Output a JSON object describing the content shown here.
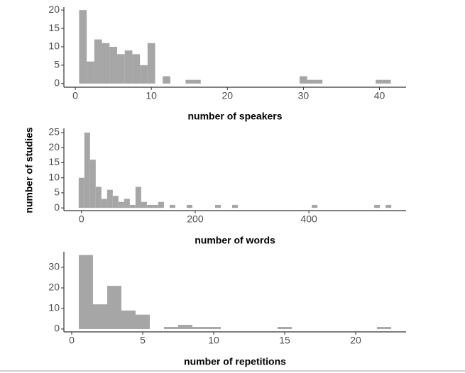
{
  "ylabel": "number of studies",
  "chart_data": [
    {
      "type": "histogram",
      "xlabel": "number of speakers",
      "color": "#a6a6a6",
      "bins": [
        0.5,
        1.5,
        2.5,
        3.5,
        4.5,
        5.5,
        6.5,
        7.5,
        8.5,
        9.5,
        10.5,
        11.5,
        12.5,
        13.5,
        14.5,
        15.5,
        16.5,
        17.5,
        18.5,
        19.5,
        20.5,
        21.5,
        22.5,
        23.5,
        24.5,
        25.5,
        26.5,
        27.5,
        28.5,
        29.5,
        30.5,
        31.5,
        32.5,
        33.5,
        34.5,
        35.5,
        36.5,
        37.5,
        38.5,
        39.5,
        40.5,
        41.5
      ],
      "counts": [
        20,
        6,
        12,
        11,
        10,
        8,
        9,
        8,
        5,
        11,
        0,
        2,
        0,
        0,
        1,
        1,
        0,
        0,
        0,
        0,
        0,
        0,
        0,
        0,
        0,
        0,
        0,
        0,
        0,
        2,
        1,
        1,
        0,
        0,
        0,
        0,
        0,
        0,
        0,
        1,
        1
      ],
      "xlim": [
        -1.5,
        43.5
      ],
      "xticks": [
        0,
        10,
        20,
        30,
        40
      ],
      "ylim": [
        -1,
        20.8
      ],
      "yticks": [
        0,
        5,
        10,
        15,
        20
      ]
    },
    {
      "type": "histogram",
      "xlabel": "number of words",
      "color": "#a6a6a6",
      "bins": [
        -5,
        5,
        15,
        25,
        35,
        45,
        55,
        65,
        75,
        85,
        95,
        105,
        115,
        125,
        135,
        145,
        155,
        165,
        175,
        185,
        195,
        205,
        215,
        225,
        235,
        245,
        255,
        265,
        275,
        285,
        295,
        305,
        315,
        325,
        335,
        345,
        355,
        365,
        375,
        385,
        395,
        405,
        415,
        425,
        435,
        445,
        455,
        465,
        475,
        485,
        495,
        505,
        515,
        525,
        535,
        545
      ],
      "counts": [
        10,
        25,
        16,
        7,
        3,
        6,
        4,
        2,
        3,
        1,
        7,
        2,
        1,
        1,
        2,
        0,
        1,
        0,
        0,
        1,
        0,
        0,
        0,
        0,
        1,
        0,
        0,
        1,
        0,
        0,
        0,
        0,
        0,
        0,
        0,
        0,
        0,
        0,
        0,
        0,
        0,
        1,
        0,
        0,
        0,
        0,
        0,
        0,
        0,
        0,
        0,
        0,
        1,
        0,
        1
      ],
      "xlim": [
        -31,
        571
      ],
      "xticks": [
        0,
        200,
        400
      ],
      "ylim": [
        -0.9,
        26.4
      ],
      "yticks": [
        0,
        5,
        10,
        15,
        20,
        25
      ]
    },
    {
      "type": "histogram",
      "xlabel": "number of repetitions",
      "color": "#a6a6a6",
      "bins": [
        0.5,
        1.5,
        2.5,
        3.5,
        4.5,
        5.5,
        6.5,
        7.5,
        8.5,
        9.5,
        10.5,
        11.5,
        12.5,
        13.5,
        14.5,
        15.5,
        16.5,
        17.5,
        18.5,
        19.5,
        20.5,
        21.5,
        22.5
      ],
      "counts": [
        36,
        12,
        21,
        9,
        7,
        0,
        1,
        2,
        1,
        1,
        0,
        0,
        0,
        0,
        1,
        0,
        0,
        0,
        0,
        0,
        0,
        1
      ],
      "xlim": [
        -0.55,
        23.55
      ],
      "xticks": [
        0,
        5,
        10,
        15,
        20
      ],
      "ylim": [
        -1.4,
        37.6
      ],
      "yticks": [
        0,
        10,
        20,
        30
      ]
    }
  ]
}
